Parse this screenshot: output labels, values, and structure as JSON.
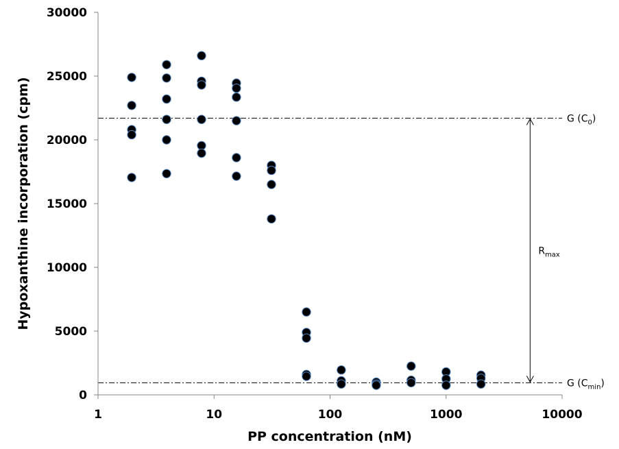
{
  "chart_data": {
    "type": "scatter",
    "title": "",
    "xlabel": "PP concentration (nM)",
    "ylabel": "Hypoxanthine incorporation (cpm)",
    "xscale": "log",
    "xlim": [
      1,
      10000
    ],
    "ylim": [
      0,
      30000
    ],
    "xticks": [
      1,
      10,
      100,
      1000,
      10000
    ],
    "xtick_labels": [
      "1",
      "10",
      "100",
      "1000",
      "10000"
    ],
    "yticks": [
      0,
      5000,
      10000,
      15000,
      20000,
      25000,
      30000
    ],
    "ytick_labels": [
      "0",
      "5000",
      "10000",
      "15000",
      "20000",
      "25000",
      "30000"
    ],
    "grid": false,
    "legend": "none",
    "marker_color": "#000000",
    "marker_edge_color": "#4f81bd",
    "series": [
      {
        "points": [
          [
            1.95,
            24900
          ],
          [
            1.95,
            22700
          ],
          [
            1.95,
            20800
          ],
          [
            1.95,
            20400
          ],
          [
            1.95,
            17050
          ],
          [
            3.9,
            25900
          ],
          [
            3.9,
            24850
          ],
          [
            3.9,
            23200
          ],
          [
            3.9,
            21600
          ],
          [
            3.9,
            20000
          ],
          [
            3.9,
            17350
          ],
          [
            7.8,
            26600
          ],
          [
            7.8,
            24600
          ],
          [
            7.8,
            24300
          ],
          [
            7.8,
            21600
          ],
          [
            7.8,
            19550
          ],
          [
            7.8,
            18950
          ],
          [
            15.6,
            24450
          ],
          [
            15.6,
            24050
          ],
          [
            15.6,
            23350
          ],
          [
            15.6,
            21500
          ],
          [
            15.6,
            18600
          ],
          [
            15.6,
            17150
          ],
          [
            31.25,
            18000
          ],
          [
            31.25,
            17600
          ],
          [
            31.25,
            16500
          ],
          [
            31.25,
            13800
          ],
          [
            62.5,
            6500
          ],
          [
            62.5,
            4900
          ],
          [
            62.5,
            4450
          ],
          [
            62.5,
            1600
          ],
          [
            62.5,
            1450
          ],
          [
            125,
            1950
          ],
          [
            125,
            1100
          ],
          [
            125,
            850
          ],
          [
            250,
            1000
          ],
          [
            250,
            850
          ],
          [
            250,
            750
          ],
          [
            500,
            2250
          ],
          [
            500,
            1150
          ],
          [
            500,
            950
          ],
          [
            1000,
            1800
          ],
          [
            1000,
            1250
          ],
          [
            1000,
            750
          ],
          [
            2000,
            1550
          ],
          [
            2000,
            1300
          ],
          [
            2000,
            850
          ]
        ]
      }
    ],
    "reference_lines": [
      {
        "label": "G (C",
        "sub": "0",
        "suffix": ")",
        "y": 21700
      },
      {
        "label": "G (C",
        "sub": "min",
        "suffix": ")",
        "y": 950
      }
    ],
    "range_annotation": {
      "label": "R",
      "sub": "max",
      "x": 5300,
      "y_from": 21700,
      "y_to": 950
    }
  }
}
